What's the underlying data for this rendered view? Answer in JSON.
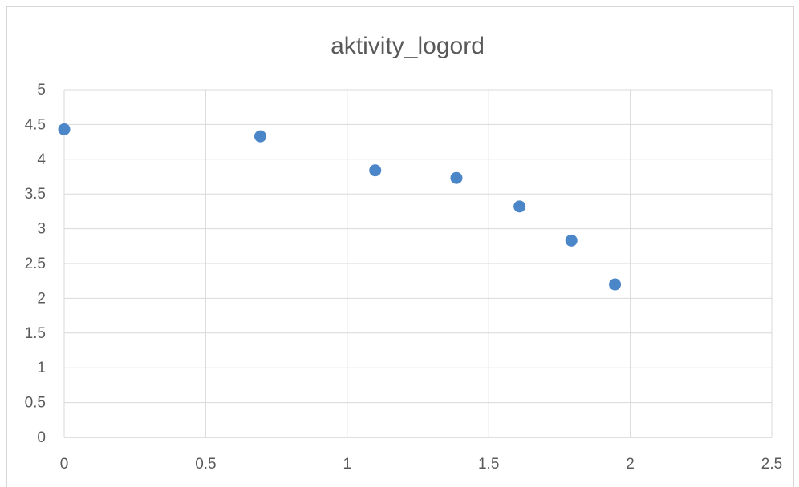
{
  "chart_data": {
    "type": "scatter",
    "title": "aktivity_logord",
    "xlabel": "",
    "ylabel": "",
    "xlim": [
      0,
      2.5
    ],
    "ylim": [
      0,
      5
    ],
    "x_ticks": [
      "0",
      "0.5",
      "1",
      "1.5",
      "2",
      "2.5"
    ],
    "y_ticks": [
      "0",
      "0.5",
      "1",
      "1.5",
      "2",
      "2.5",
      "3",
      "3.5",
      "4",
      "4.5",
      "5"
    ],
    "grid": true,
    "legend": "none",
    "marker_color": "#4a86c8",
    "series": [
      {
        "x": [
          0.0,
          0.693,
          1.099,
          1.386,
          1.609,
          1.792,
          1.946
        ],
        "y": [
          4.43,
          4.33,
          3.84,
          3.73,
          3.32,
          2.83,
          2.2
        ]
      }
    ]
  }
}
